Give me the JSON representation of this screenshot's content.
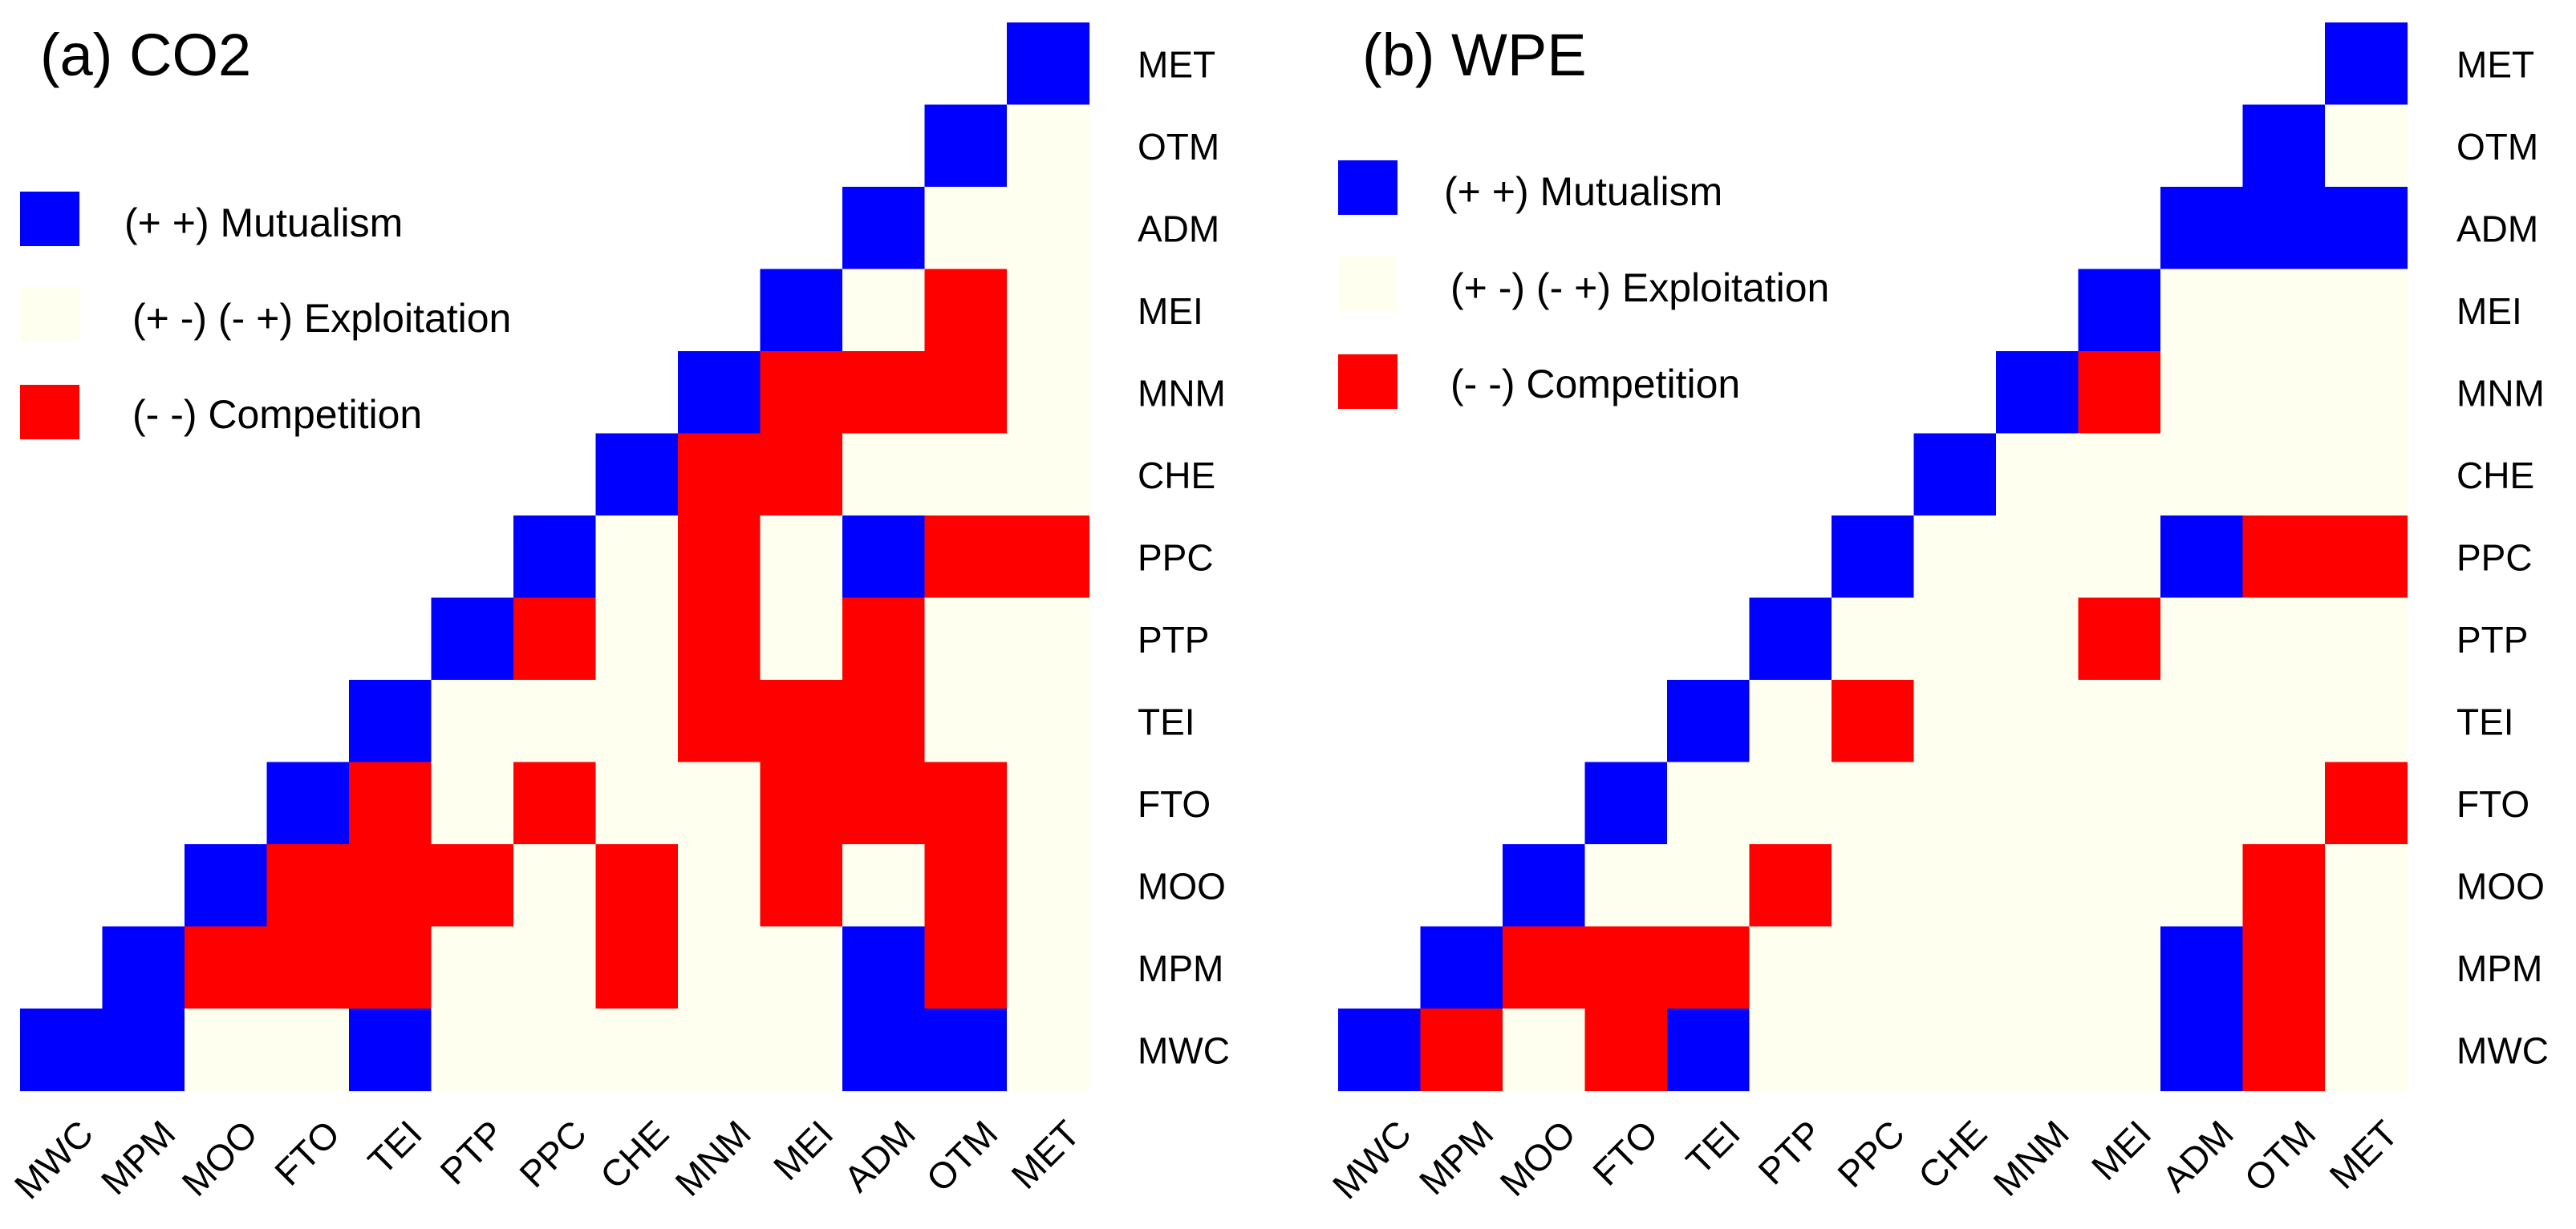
{
  "colors": {
    "mutualism": "#0000ff",
    "exploitation": "#fffff0",
    "competition": "#ff0000"
  },
  "legend": {
    "mutualism": "(+ +) Mutualism",
    "exploitation": "(+ -) (- +) Exploitation",
    "competition": "(- -) Competition"
  },
  "chart_data": [
    {
      "type": "heatmap",
      "title": "(a) CO2",
      "x_categories": [
        "MWC",
        "MPM",
        "MOO",
        "FTO",
        "TEI",
        "PTP",
        "PPC",
        "CHE",
        "MNM",
        "MEI",
        "ADM",
        "OTM",
        "MET"
      ],
      "y_categories": [
        "MET",
        "OTM",
        "ADM",
        "MEI",
        "MNM",
        "CHE",
        "PPC",
        "PTP",
        "TEI",
        "FTO",
        "MOO",
        "MPM",
        "MWC"
      ],
      "legend_position": "upper-left",
      "cell_codes": {
        "M": "(+ +) Mutualism",
        "E": "(+ -) (- +) Exploitation",
        "C": "(- -) Competition",
        "": "empty"
      },
      "cells": [
        [
          "",
          "",
          "",
          "",
          "",
          "",
          "",
          "",
          "",
          "",
          "",
          "",
          "M"
        ],
        [
          "",
          "",
          "",
          "",
          "",
          "",
          "",
          "",
          "",
          "",
          "",
          "M",
          "E"
        ],
        [
          "",
          "",
          "",
          "",
          "",
          "",
          "",
          "",
          "",
          "",
          "M",
          "E",
          "E"
        ],
        [
          "",
          "",
          "",
          "",
          "",
          "",
          "",
          "",
          "",
          "M",
          "E",
          "C",
          "E"
        ],
        [
          "",
          "",
          "",
          "",
          "",
          "",
          "",
          "",
          "M",
          "C",
          "C",
          "C",
          "E"
        ],
        [
          "",
          "",
          "",
          "",
          "",
          "",
          "",
          "M",
          "C",
          "C",
          "E",
          "E",
          "E"
        ],
        [
          "",
          "",
          "",
          "",
          "",
          "",
          "M",
          "E",
          "C",
          "E",
          "M",
          "C",
          "C"
        ],
        [
          "",
          "",
          "",
          "",
          "",
          "M",
          "C",
          "E",
          "C",
          "E",
          "C",
          "E",
          "E"
        ],
        [
          "",
          "",
          "",
          "",
          "M",
          "E",
          "E",
          "E",
          "C",
          "C",
          "C",
          "E",
          "E"
        ],
        [
          "",
          "",
          "",
          "M",
          "C",
          "E",
          "C",
          "E",
          "E",
          "C",
          "C",
          "C",
          "E"
        ],
        [
          "",
          "",
          "M",
          "C",
          "C",
          "C",
          "E",
          "C",
          "E",
          "C",
          "E",
          "C",
          "E"
        ],
        [
          "",
          "M",
          "C",
          "C",
          "C",
          "E",
          "E",
          "C",
          "E",
          "E",
          "M",
          "C",
          "E"
        ],
        [
          "M",
          "M",
          "E",
          "E",
          "M",
          "E",
          "E",
          "E",
          "E",
          "E",
          "M",
          "M",
          "E"
        ]
      ]
    },
    {
      "type": "heatmap",
      "title": "(b) WPE",
      "x_categories": [
        "MWC",
        "MPM",
        "MOO",
        "FTO",
        "TEI",
        "PTP",
        "PPC",
        "CHE",
        "MNM",
        "MEI",
        "ADM",
        "OTM",
        "MET"
      ],
      "y_categories": [
        "MET",
        "OTM",
        "ADM",
        "MEI",
        "MNM",
        "CHE",
        "PPC",
        "PTP",
        "TEI",
        "FTO",
        "MOO",
        "MPM",
        "MWC"
      ],
      "legend_position": "upper-left",
      "cell_codes": {
        "M": "(+ +) Mutualism",
        "E": "(+ -) (- +) Exploitation",
        "C": "(- -) Competition",
        "": "empty"
      },
      "cells": [
        [
          "",
          "",
          "",
          "",
          "",
          "",
          "",
          "",
          "",
          "",
          "",
          "",
          "M"
        ],
        [
          "",
          "",
          "",
          "",
          "",
          "",
          "",
          "",
          "",
          "",
          "",
          "M",
          "E"
        ],
        [
          "",
          "",
          "",
          "",
          "",
          "",
          "",
          "",
          "",
          "",
          "M",
          "M",
          "M"
        ],
        [
          "",
          "",
          "",
          "",
          "",
          "",
          "",
          "",
          "",
          "M",
          "E",
          "E",
          "E"
        ],
        [
          "",
          "",
          "",
          "",
          "",
          "",
          "",
          "",
          "M",
          "C",
          "E",
          "E",
          "E"
        ],
        [
          "",
          "",
          "",
          "",
          "",
          "",
          "",
          "M",
          "E",
          "E",
          "E",
          "E",
          "E"
        ],
        [
          "",
          "",
          "",
          "",
          "",
          "",
          "M",
          "E",
          "E",
          "E",
          "M",
          "C",
          "C"
        ],
        [
          "",
          "",
          "",
          "",
          "",
          "M",
          "E",
          "E",
          "E",
          "C",
          "E",
          "E",
          "E"
        ],
        [
          "",
          "",
          "",
          "",
          "M",
          "E",
          "C",
          "E",
          "E",
          "E",
          "E",
          "E",
          "E"
        ],
        [
          "",
          "",
          "",
          "M",
          "E",
          "E",
          "E",
          "E",
          "E",
          "E",
          "E",
          "E",
          "C"
        ],
        [
          "",
          "",
          "M",
          "E",
          "E",
          "C",
          "E",
          "E",
          "E",
          "E",
          "E",
          "C",
          "E"
        ],
        [
          "",
          "M",
          "C",
          "C",
          "C",
          "E",
          "E",
          "E",
          "E",
          "E",
          "M",
          "C",
          "E"
        ],
        [
          "M",
          "C",
          "E",
          "C",
          "M",
          "E",
          "E",
          "E",
          "E",
          "E",
          "M",
          "C",
          "E"
        ]
      ]
    }
  ]
}
